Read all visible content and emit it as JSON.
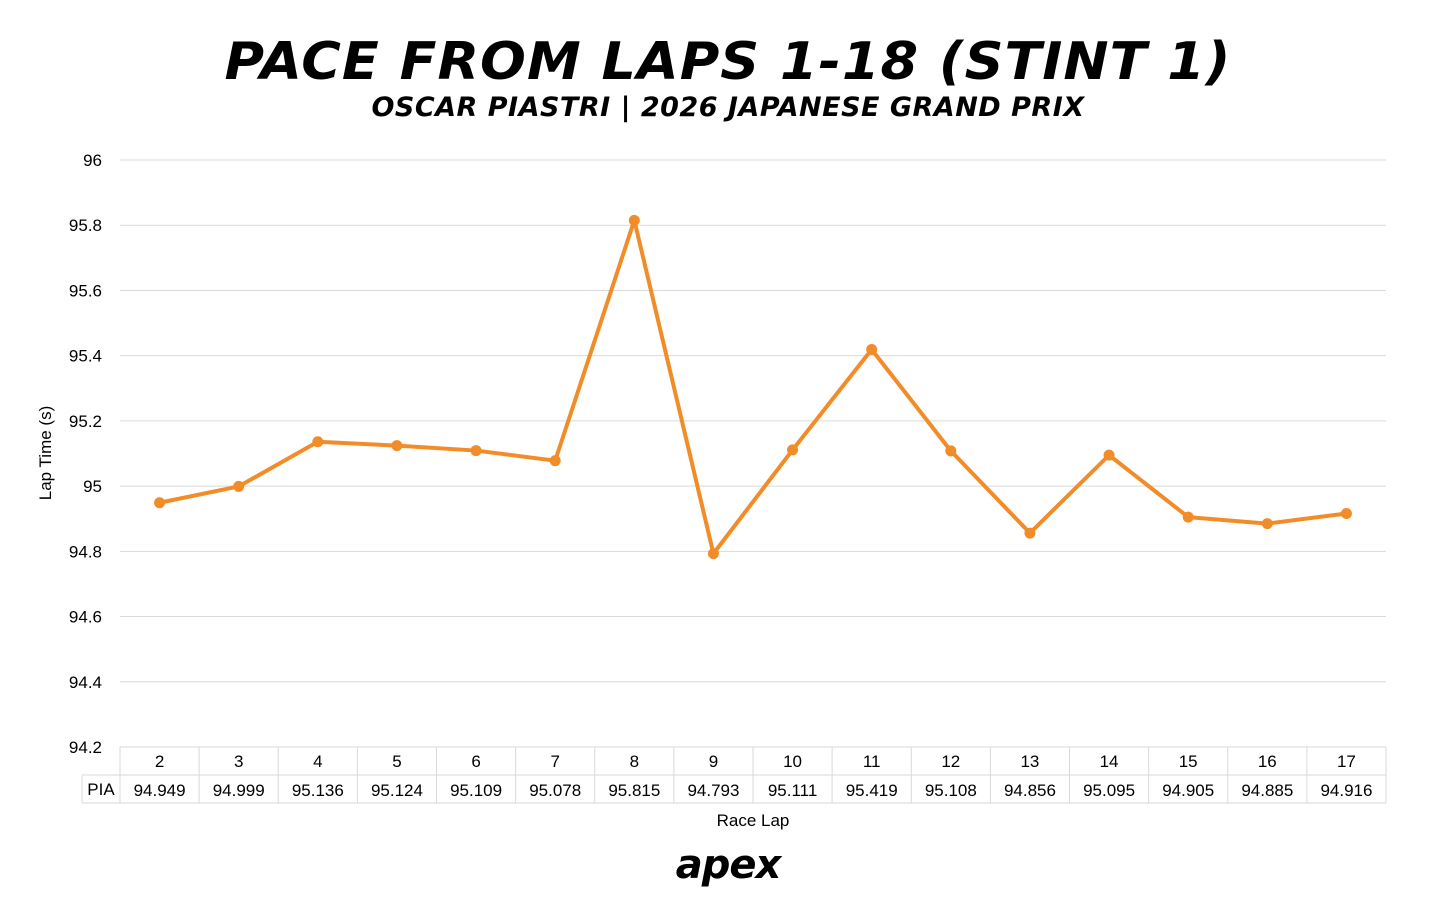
{
  "chart_data": {
    "type": "line",
    "title": "PACE FROM LAPS 1-18 (STINT 1)",
    "subtitle": "OSCAR PIASTRI | 2026 JAPANESE GRAND PRIX",
    "xlabel": "Race Lap",
    "ylabel": "Lap Time (s)",
    "ylim": [
      94.2,
      96
    ],
    "yticks": [
      "96",
      "95.8",
      "95.6",
      "95.4",
      "95.2",
      "95",
      "94.8",
      "94.6",
      "94.4",
      "94.2"
    ],
    "grid": true,
    "categories": [
      "2",
      "3",
      "4",
      "5",
      "6",
      "7",
      "8",
      "9",
      "10",
      "11",
      "12",
      "13",
      "14",
      "15",
      "16",
      "17"
    ],
    "series": [
      {
        "name": "PIA",
        "color": "#F28C28",
        "values": [
          94.949,
          94.999,
          95.136,
          95.124,
          95.109,
          95.078,
          95.815,
          94.793,
          95.111,
          95.419,
          95.108,
          94.856,
          95.095,
          94.905,
          94.885,
          94.916
        ],
        "labels": [
          "94.949",
          "94.999",
          "95.136",
          "95.124",
          "95.109",
          "95.078",
          "95.815",
          "94.793",
          "95.111",
          "95.419",
          "95.108",
          "94.856",
          "95.095",
          "94.905",
          "94.885",
          "94.916"
        ]
      }
    ]
  },
  "branding": {
    "logo_text": "apex"
  }
}
